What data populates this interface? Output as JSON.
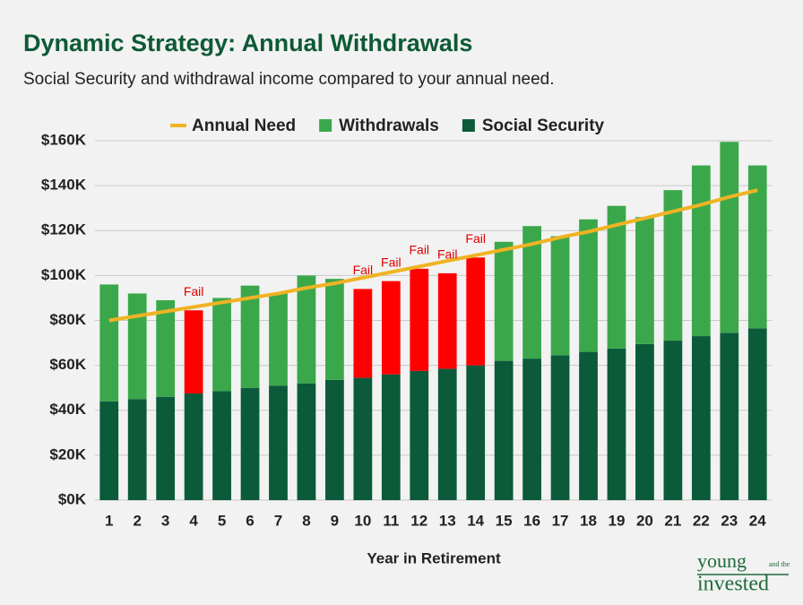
{
  "chart_data": {
    "type": "stacked_bar_line",
    "title": "Dynamic Strategy: Annual Withdrawals",
    "subtitle": "Social Security and withdrawal income compared to your annual need.",
    "x_label": "Year in Retirement",
    "categories": [
      "1",
      "2",
      "3",
      "4",
      "5",
      "6",
      "7",
      "8",
      "9",
      "10",
      "11",
      "12",
      "13",
      "14",
      "15",
      "16",
      "17",
      "18",
      "19",
      "20",
      "21",
      "22",
      "23",
      "24"
    ],
    "series": [
      {
        "name": "Annual Need",
        "kind": "line",
        "color": "#f0b323",
        "values": [
          80,
          82,
          84,
          86,
          88,
          90,
          92,
          94.5,
          96.5,
          99,
          101.5,
          104,
          106.5,
          109,
          111.5,
          114,
          117,
          119.5,
          122.5,
          125.5,
          128.5,
          131.5,
          135,
          138
        ]
      },
      {
        "name": "Withdrawals",
        "kind": "bar",
        "color": "#3aa84a",
        "values": [
          52,
          47,
          43,
          37,
          41.5,
          45.5,
          41,
          48,
          45,
          39.5,
          41.5,
          45.5,
          42.5,
          48,
          53,
          59,
          53,
          59,
          63.5,
          56.5,
          67,
          76,
          85,
          72.5
        ]
      },
      {
        "name": "Social Security",
        "kind": "bar",
        "color": "#0b5a3a",
        "values": [
          44,
          45,
          46,
          47.5,
          48.5,
          50,
          51,
          52,
          53.5,
          54.5,
          56,
          57.5,
          58.5,
          60,
          62,
          63,
          64.5,
          66,
          67.5,
          69.5,
          71,
          73,
          74.5,
          76.5
        ]
      }
    ],
    "fail_color": "#ff0000",
    "annotations": [
      {
        "category": "4",
        "text": "Fail"
      },
      {
        "category": "10",
        "text": "Fail"
      },
      {
        "category": "11",
        "text": "Fail"
      },
      {
        "category": "12",
        "text": "Fail"
      },
      {
        "category": "13",
        "text": "Fail"
      },
      {
        "category": "14",
        "text": "Fail"
      }
    ],
    "ylim": [
      0,
      160
    ],
    "yticks": [
      {
        "value": 0,
        "label": "$0K"
      },
      {
        "value": 20,
        "label": "$20K"
      },
      {
        "value": 40,
        "label": "$40K"
      },
      {
        "value": 60,
        "label": "$60K"
      },
      {
        "value": 80,
        "label": "$80K"
      },
      {
        "value": 100,
        "label": "$100K"
      },
      {
        "value": 120,
        "label": "$120K"
      },
      {
        "value": 140,
        "label": "$140K"
      },
      {
        "value": 160,
        "label": "$160K"
      }
    ],
    "grid": true,
    "legend": "top"
  },
  "logo": {
    "line1": "young",
    "small": "and the",
    "line2": "invested"
  }
}
